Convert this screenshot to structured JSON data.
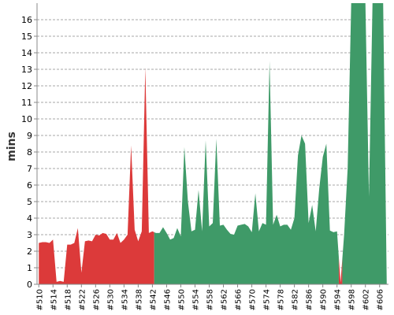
{
  "chart_data": {
    "type": "area",
    "ylabel": "mins",
    "xlabel": "",
    "ylim": [
      0,
      17
    ],
    "xlim": [
      509.5,
      608.5
    ],
    "grid": true,
    "yticks": [
      0,
      1,
      2,
      3,
      4,
      5,
      6,
      7,
      8,
      9,
      10,
      11,
      12,
      13,
      14,
      15,
      16
    ],
    "xticks": [
      "#510",
      "#514",
      "#518",
      "#522",
      "#526",
      "#530",
      "#534",
      "#538",
      "#542",
      "#546",
      "#550",
      "#554",
      "#558",
      "#562",
      "#566",
      "#570",
      "#574",
      "#578",
      "#582",
      "#586",
      "#590",
      "#594",
      "#598",
      "#602",
      "#606"
    ],
    "xtick_values": [
      510,
      514,
      518,
      522,
      526,
      530,
      534,
      538,
      542,
      546,
      550,
      554,
      558,
      562,
      566,
      570,
      574,
      578,
      582,
      586,
      590,
      594,
      598,
      602,
      606
    ],
    "x": [
      510,
      511,
      512,
      513,
      514,
      515,
      516,
      517,
      518,
      519,
      520,
      521,
      522,
      523,
      524,
      525,
      526,
      527,
      528,
      529,
      530,
      531,
      532,
      533,
      534,
      535,
      536,
      537,
      538,
      539,
      540,
      541,
      542,
      543,
      544,
      545,
      546,
      547,
      548,
      549,
      550,
      551,
      552,
      553,
      554,
      555,
      556,
      557,
      558,
      559,
      560,
      561,
      562,
      563,
      564,
      565,
      566,
      567,
      568,
      569,
      570,
      571,
      572,
      573,
      574,
      575,
      576,
      577,
      578,
      579,
      580,
      581,
      582,
      583,
      584,
      585,
      586,
      587,
      588,
      589,
      590,
      591,
      592,
      593,
      594,
      595,
      596,
      597,
      598,
      599,
      600,
      601,
      602,
      603,
      604,
      605,
      606,
      607,
      608
    ],
    "values": [
      2.5,
      2.55,
      2.55,
      2.5,
      2.7,
      0.15,
      0.2,
      0.15,
      2.4,
      2.4,
      2.5,
      3.4,
      0.7,
      2.6,
      2.65,
      2.6,
      3.0,
      2.95,
      3.1,
      3.05,
      2.7,
      2.7,
      3.1,
      2.5,
      2.7,
      3.0,
      8.4,
      3.3,
      2.6,
      3.2,
      13.1,
      3.1,
      3.2,
      3.1,
      3.1,
      3.45,
      3.1,
      2.7,
      2.8,
      3.4,
      2.9,
      8.3,
      5.0,
      3.2,
      3.3,
      5.7,
      3.2,
      8.7,
      3.5,
      3.7,
      8.8,
      3.55,
      3.6,
      3.3,
      3.05,
      3.0,
      3.55,
      3.6,
      3.65,
      3.5,
      3.15,
      5.5,
      3.2,
      3.7,
      3.6,
      13.5,
      3.6,
      4.2,
      3.5,
      3.6,
      3.6,
      3.3,
      4.0,
      7.8,
      9.0,
      8.5,
      3.7,
      4.8,
      3.2,
      5.8,
      7.7,
      8.5,
      3.25,
      3.15,
      3.2,
      0.1,
      3.0,
      7.0,
      17,
      17,
      17,
      17,
      17,
      5.3,
      17,
      17,
      17,
      17,
      0.15
    ],
    "series_colors": {
      "red": "#dc3a3a",
      "green": "#3f9a68"
    },
    "color_segments": [
      {
        "color": "red",
        "from": 510,
        "to": 542
      },
      {
        "color": "green",
        "from": 543,
        "to": 594
      },
      {
        "color": "red",
        "from": 595,
        "to": 595
      },
      {
        "color": "green",
        "from": 596,
        "to": 608
      }
    ]
  }
}
